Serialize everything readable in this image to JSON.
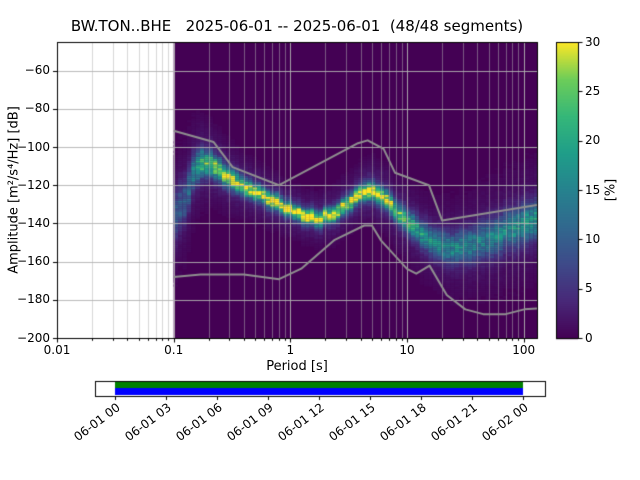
{
  "title": "BW.TON..BHE   2025-06-01 -- 2025-06-01  (48/48 segments)",
  "station": "BW.TON..BHE",
  "date_start": "2025-06-01",
  "date_end": "2025-06-01",
  "segments": "48/48",
  "chart_data": {
    "type": "heatmap",
    "title": "BW.TON..BHE   2025-06-01 -- 2025-06-01  (48/48 segments)",
    "xlabel": "Period [s]",
    "ylabel": "Amplitude [m²/s⁴/Hz] [dB]",
    "colorbar_label": "[%]",
    "x_scale": "log",
    "xlim": [
      0.01,
      130
    ],
    "ylim": [
      -200,
      -45
    ],
    "x_ticks": [
      0.01,
      0.1,
      1,
      10,
      100
    ],
    "x_tick_labels": [
      "0.01",
      "0.1",
      "1",
      "10",
      "100"
    ],
    "y_ticks": [
      -60,
      -80,
      -100,
      -120,
      -140,
      -160,
      -180,
      -200
    ],
    "y_tick_labels": [
      "−60",
      "−80",
      "−100",
      "−120",
      "−140",
      "−160",
      "−180",
      "−200"
    ],
    "grid": true,
    "background_color": "#440154",
    "colormap": "viridis",
    "viridis_stops": [
      [
        0.0,
        [
          68,
          1,
          84
        ]
      ],
      [
        0.125,
        [
          72,
          40,
          120
        ]
      ],
      [
        0.25,
        [
          62,
          74,
          137
        ]
      ],
      [
        0.375,
        [
          49,
          104,
          142
        ]
      ],
      [
        0.5,
        [
          38,
          130,
          142
        ]
      ],
      [
        0.625,
        [
          31,
          158,
          137
        ]
      ],
      [
        0.75,
        [
          53,
          183,
          121
        ]
      ],
      [
        0.875,
        [
          109,
          205,
          89
        ]
      ],
      [
        1.0,
        [
          253,
          231,
          37
        ]
      ]
    ],
    "colorbar": {
      "min": 0,
      "max": 30,
      "ticks": [
        0,
        5,
        10,
        15,
        20,
        25,
        30
      ],
      "tick_labels": [
        "0",
        "5",
        "10",
        "15",
        "20",
        "25",
        "30"
      ]
    },
    "histogram_period_range": [
      0.1,
      130
    ],
    "histogram_mode_db": [
      [
        0.1,
        -136
      ],
      [
        0.125,
        -128
      ],
      [
        0.15,
        -113
      ],
      [
        0.18,
        -108
      ],
      [
        0.22,
        -110
      ],
      [
        0.3,
        -116
      ],
      [
        0.4,
        -120.5
      ],
      [
        0.6,
        -126
      ],
      [
        0.9,
        -131.5
      ],
      [
        1.3,
        -135.5
      ],
      [
        1.8,
        -137.5
      ],
      [
        2.5,
        -134
      ],
      [
        3.2,
        -129
      ],
      [
        4.0,
        -125
      ],
      [
        5.0,
        -122.5
      ],
      [
        6.5,
        -127
      ],
      [
        8.0,
        -133
      ],
      [
        10.0,
        -139
      ],
      [
        13.0,
        -145
      ],
      [
        18.0,
        -151
      ],
      [
        25.0,
        -153.5
      ],
      [
        35.0,
        -151
      ],
      [
        50.0,
        -147.5
      ],
      [
        70.0,
        -144
      ],
      [
        100.0,
        -140.5
      ],
      [
        130.0,
        -137.5
      ]
    ],
    "histogram_peak_percent": [
      [
        0.1,
        8
      ],
      [
        0.125,
        9
      ],
      [
        0.15,
        14
      ],
      [
        0.18,
        21
      ],
      [
        0.22,
        22
      ],
      [
        0.3,
        24
      ],
      [
        0.4,
        25
      ],
      [
        0.6,
        26
      ],
      [
        0.9,
        27
      ],
      [
        1.3,
        28
      ],
      [
        1.8,
        27
      ],
      [
        2.5,
        25
      ],
      [
        3.2,
        26
      ],
      [
        4.0,
        29
      ],
      [
        5.0,
        30
      ],
      [
        6.5,
        26
      ],
      [
        8.0,
        22
      ],
      [
        10.0,
        19
      ],
      [
        13.0,
        16
      ],
      [
        18.0,
        15
      ],
      [
        25.0,
        14
      ],
      [
        35.0,
        13
      ],
      [
        50.0,
        13
      ],
      [
        70.0,
        14
      ],
      [
        100.0,
        15
      ],
      [
        130.0,
        16
      ]
    ],
    "histogram_spread_db": [
      [
        0.1,
        9
      ],
      [
        0.125,
        8
      ],
      [
        0.15,
        6
      ],
      [
        0.18,
        4.5
      ],
      [
        0.22,
        4
      ],
      [
        0.3,
        3.5
      ],
      [
        0.4,
        3
      ],
      [
        0.6,
        2.8
      ],
      [
        0.9,
        2.6
      ],
      [
        1.3,
        2.5
      ],
      [
        1.8,
        2.6
      ],
      [
        2.5,
        2.8
      ],
      [
        3.2,
        2.8
      ],
      [
        4.0,
        2.8
      ],
      [
        5.0,
        3
      ],
      [
        6.5,
        3.2
      ],
      [
        8.0,
        3.5
      ],
      [
        10.0,
        4
      ],
      [
        13.0,
        4.5
      ],
      [
        18.0,
        5
      ],
      [
        25.0,
        5.5
      ],
      [
        35.0,
        6
      ],
      [
        50.0,
        6.5
      ],
      [
        70.0,
        6.5
      ],
      [
        100.0,
        6.5
      ],
      [
        130.0,
        6.5
      ]
    ],
    "noise_models": {
      "color": "#8f8f8f",
      "nhnm": [
        [
          0.1,
          -91.5
        ],
        [
          0.22,
          -97.4
        ],
        [
          0.32,
          -110.5
        ],
        [
          0.8,
          -120.0
        ],
        [
          3.8,
          -98.0
        ],
        [
          4.6,
          -96.5
        ],
        [
          6.3,
          -101.0
        ],
        [
          7.9,
          -113.5
        ],
        [
          15.4,
          -120.0
        ],
        [
          20,
          -138.5
        ],
        [
          130,
          -130.3
        ]
      ],
      "nlnm": [
        [
          0.1,
          -168.0
        ],
        [
          0.17,
          -166.7
        ],
        [
          0.4,
          -166.7
        ],
        [
          0.8,
          -169.2
        ],
        [
          1.24,
          -163.7
        ],
        [
          2.4,
          -148.6
        ],
        [
          4.3,
          -141.1
        ],
        [
          5.0,
          -141.1
        ],
        [
          6.0,
          -149.0
        ],
        [
          10,
          -163.8
        ],
        [
          12,
          -166.3
        ],
        [
          15.6,
          -162.1
        ],
        [
          21.9,
          -177.5
        ],
        [
          31.6,
          -185.0
        ],
        [
          45,
          -187.5
        ],
        [
          70,
          -187.5
        ],
        [
          101,
          -185.0
        ],
        [
          130,
          -184.6
        ]
      ]
    }
  },
  "timeline": {
    "labels": [
      "06-01 00",
      "06-01 03",
      "06-01 06",
      "06-01 09",
      "06-01 12",
      "06-01 15",
      "06-01 18",
      "06-01 21",
      "06-02 00"
    ],
    "coverage_color_top": "#008000",
    "coverage_color_bottom": "#0000ff"
  }
}
